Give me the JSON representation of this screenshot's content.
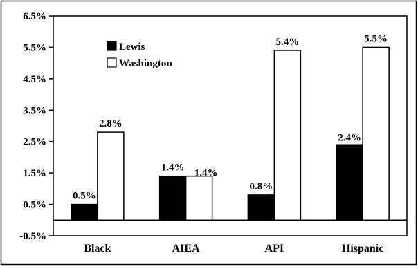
{
  "chart_data": {
    "type": "bar",
    "categories": [
      "Black",
      "AIEA",
      "API",
      "Hispanic"
    ],
    "series": [
      {
        "name": "Lewis",
        "values": [
          0.5,
          1.4,
          0.8,
          2.4
        ],
        "labels": [
          "0.5%",
          "1.4%",
          "0.8%",
          "2.4%"
        ],
        "color": "#000000"
      },
      {
        "name": "Washington",
        "values": [
          2.8,
          1.4,
          5.4,
          5.5
        ],
        "labels": [
          "2.8%",
          "1.4%",
          "5.4%",
          "5.5%"
        ],
        "color": "#ffffff"
      }
    ],
    "yticks": [
      -0.5,
      0.5,
      1.5,
      2.5,
      3.5,
      4.5,
      5.5,
      6.5
    ],
    "ytick_labels": [
      "-0.5%",
      "0.5%",
      "1.5%",
      "2.5%",
      "3.5%",
      "4.5%",
      "5.5%",
      "6.5%"
    ],
    "ylim": [
      -0.5,
      6.5
    ],
    "grid": false,
    "legend_position": "top-left",
    "title": "",
    "xlabel": "",
    "ylabel": ""
  }
}
